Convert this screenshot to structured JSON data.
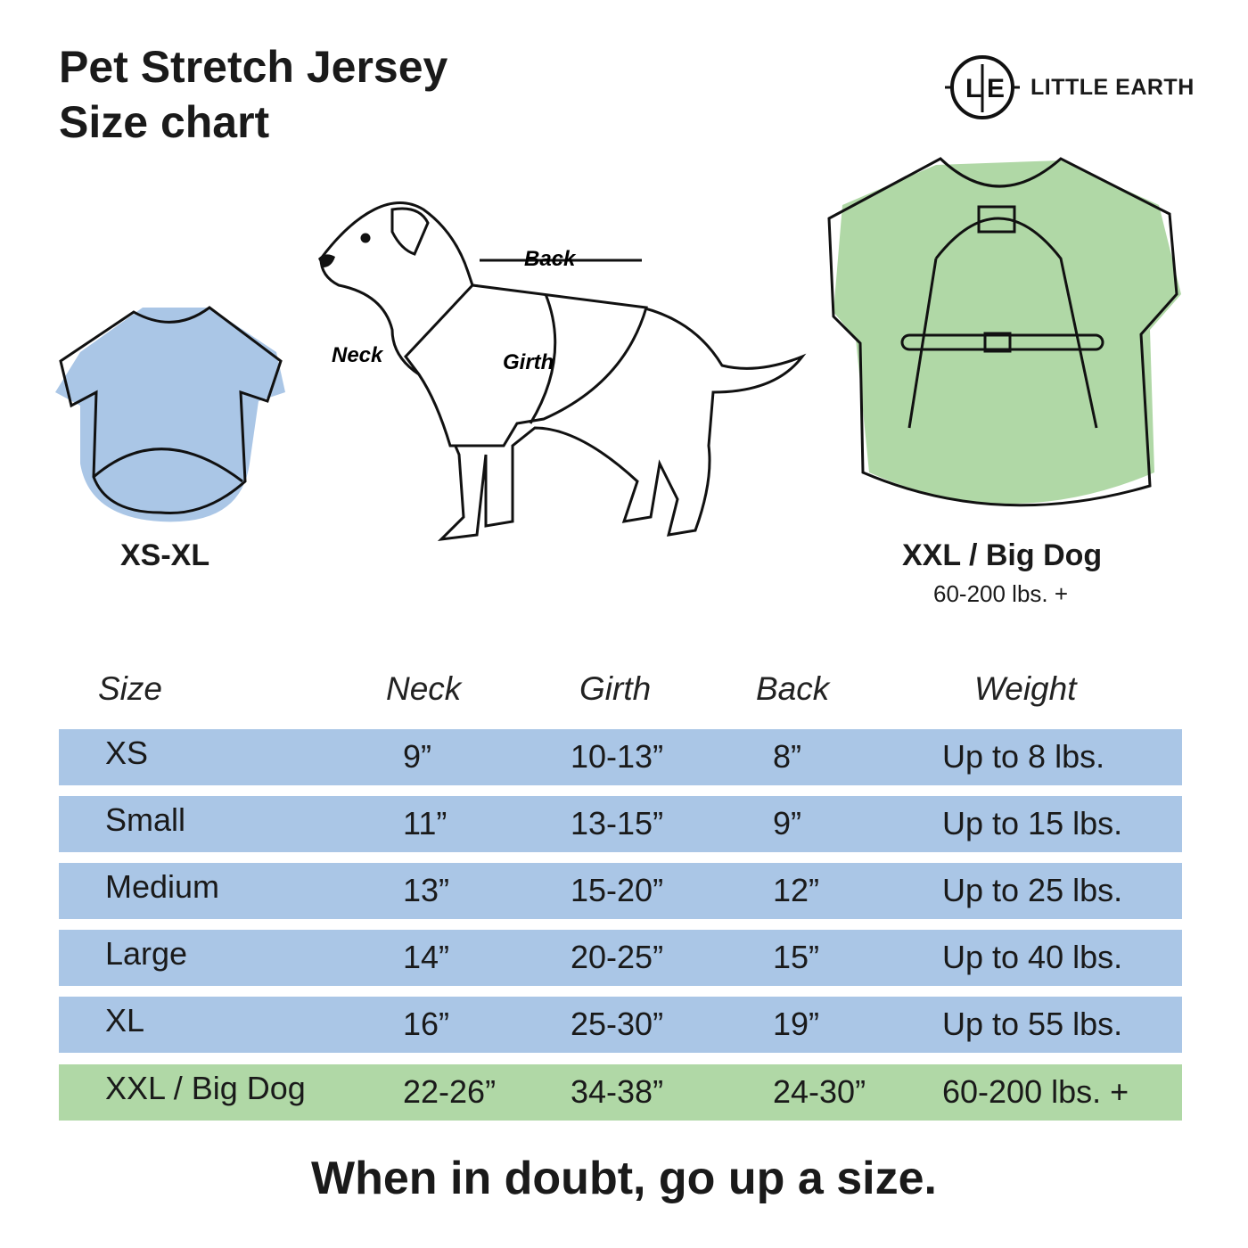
{
  "title_line1": "Pet Stretch Jersey",
  "title_line2": "Size chart",
  "brand": {
    "monogram_left": "L",
    "monogram_right": "E",
    "name": "LITTLE EARTH"
  },
  "illustrations": {
    "small_label": "XS-XL",
    "big_label": "XXL / Big Dog",
    "big_sub": "60-200 lbs. +",
    "dog_labels": {
      "back": "Back",
      "neck": "Neck",
      "girth": "Girth"
    },
    "colors": {
      "blue": "#aac6e6",
      "green": "#b0d8a6"
    }
  },
  "table": {
    "headers": [
      "Size",
      "Neck",
      "Girth",
      "Back",
      "Weight"
    ],
    "rows": [
      {
        "cells": [
          "XS",
          "9”",
          "10-13”",
          "8”",
          "Up to 8 lbs."
        ],
        "color": "#aac6e6"
      },
      {
        "cells": [
          "Small",
          "11”",
          "13-15”",
          "9”",
          "Up to 15 lbs."
        ],
        "color": "#aac6e6"
      },
      {
        "cells": [
          "Medium",
          "13”",
          "15-20”",
          "12”",
          "Up to 25 lbs."
        ],
        "color": "#aac6e6"
      },
      {
        "cells": [
          "Large",
          "14”",
          "20-25”",
          "15”",
          "Up to 40 lbs."
        ],
        "color": "#aac6e6"
      },
      {
        "cells": [
          "XL",
          "16”",
          "25-30”",
          "19”",
          "Up to 55 lbs."
        ],
        "color": "#aac6e6"
      },
      {
        "cells": [
          "XXL / Big Dog",
          "22-26”",
          "34-38”",
          "24-30”",
          "60-200 lbs. +"
        ],
        "color": "#b0d8a6"
      }
    ]
  },
  "footer": "When in doubt, go up a size."
}
